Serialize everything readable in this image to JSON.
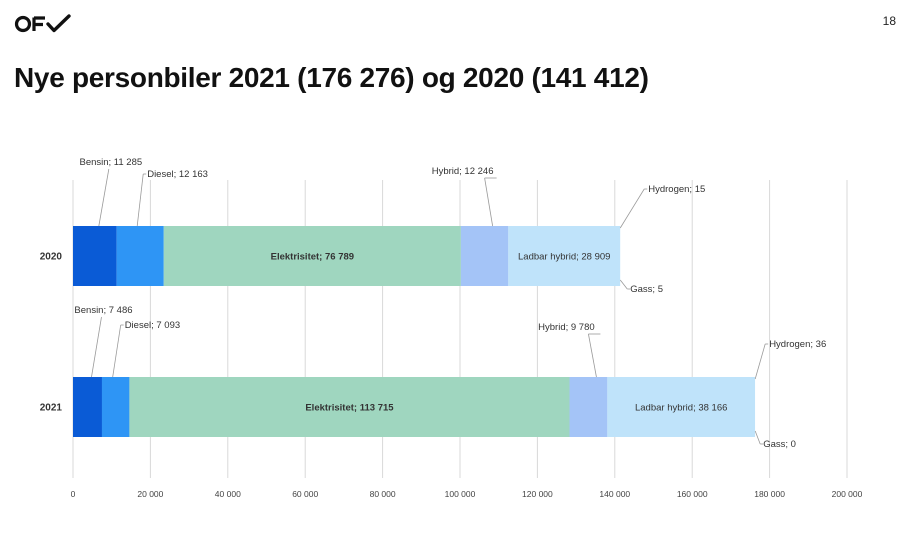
{
  "page": {
    "slide_number": "18",
    "title": "Nye personbiler 2021 (176 276) og 2020 (141 412)",
    "logo_icon": "ofv-logo-icon"
  },
  "chart_data": {
    "type": "bar",
    "orientation": "horizontal",
    "stacked": true,
    "title": "",
    "xlabel": "",
    "ylabel": "",
    "xlim": [
      0,
      200000
    ],
    "x_ticks": [
      0,
      20000,
      40000,
      60000,
      80000,
      100000,
      120000,
      140000,
      160000,
      180000,
      200000
    ],
    "x_tick_labels": [
      "0",
      "20 000",
      "40 000",
      "60 000",
      "80 000",
      "100 000",
      "120 000",
      "140 000",
      "160 000",
      "180 000",
      "200 000"
    ],
    "grid": "vertical",
    "legend": "none",
    "categories": [
      "2020",
      "2021"
    ],
    "series": [
      {
        "name": "Bensin",
        "color": "#0a5bd6",
        "values": [
          11285,
          7486
        ],
        "labels": [
          "Bensin; 11 285",
          "Bensin; 7 486"
        ]
      },
      {
        "name": "Diesel",
        "color": "#2e95f5",
        "values": [
          12163,
          7093
        ],
        "labels": [
          "Diesel; 12 163",
          "Diesel; 7 093"
        ]
      },
      {
        "name": "Elektrisitet",
        "color": "#9fd6bf",
        "values": [
          76789,
          113715
        ],
        "labels": [
          "Elektrisitet; 76 789",
          "Elektrisitet; 113 715"
        ]
      },
      {
        "name": "Hybrid",
        "color": "#a4c4f7",
        "values": [
          12246,
          9780
        ],
        "labels": [
          "Hybrid; 12 246",
          "Hybrid; 9 780"
        ]
      },
      {
        "name": "Ladbar hybrid",
        "color": "#bfe3fa",
        "values": [
          28909,
          38166
        ],
        "labels": [
          "Ladbar hybrid; 28 909",
          "Ladbar hybrid; 38 166"
        ]
      },
      {
        "name": "Hydrogen",
        "color": "#6fa0e0",
        "values": [
          15,
          36
        ],
        "labels": [
          "Hydrogen; 15",
          "Hydrogen; 36"
        ]
      },
      {
        "name": "Gass",
        "color": "#5a8fd6",
        "values": [
          5,
          0
        ],
        "labels": [
          "Gass; 5",
          "Gass; 0"
        ]
      }
    ]
  }
}
